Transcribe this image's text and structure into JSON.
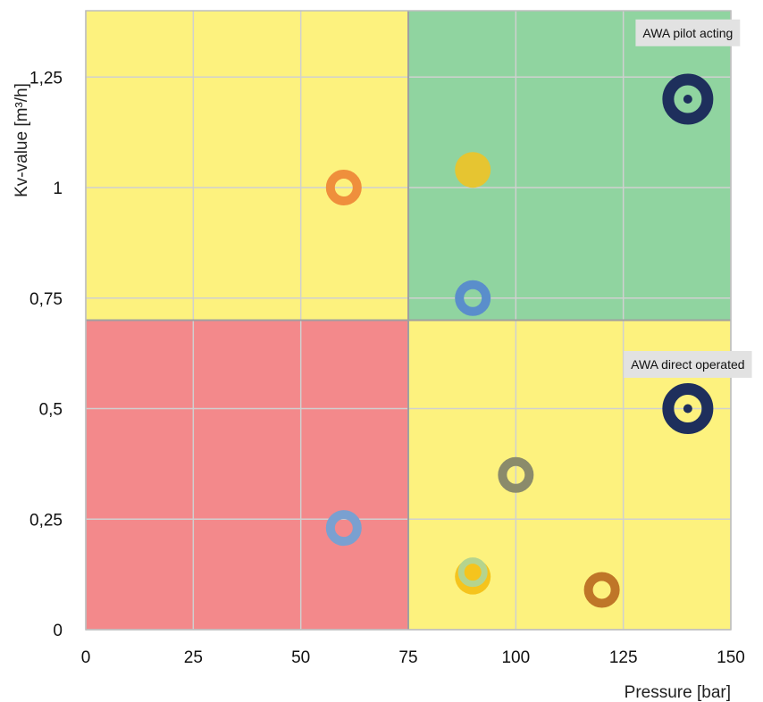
{
  "chart_data": {
    "type": "scatter",
    "title": "",
    "xlabel": "Pressure [bar]",
    "ylabel": "Kv-value [m³/h]",
    "xlim": [
      0,
      150
    ],
    "ylim": [
      0,
      1.4
    ],
    "x_ticks": [
      0,
      25,
      50,
      75,
      100,
      125,
      150
    ],
    "y_ticks": [
      0,
      0.25,
      0.5,
      0.75,
      1,
      1.25
    ],
    "x_tick_labels": [
      "0",
      "25",
      "50",
      "75",
      "100",
      "125",
      "150"
    ],
    "y_tick_labels": [
      "0",
      "0,25",
      "0,5",
      "0,75",
      "1",
      "1,25"
    ],
    "grid": true,
    "regions": [
      {
        "x": [
          0,
          75
        ],
        "y": [
          0.7,
          1.4
        ],
        "color": "#fdf27e"
      },
      {
        "x": [
          75,
          150
        ],
        "y": [
          0.7,
          1.4
        ],
        "color": "#90d4a0"
      },
      {
        "x": [
          0,
          75
        ],
        "y": [
          0,
          0.7
        ],
        "color": "#f3898b"
      },
      {
        "x": [
          75,
          150
        ],
        "y": [
          0,
          0.7
        ],
        "color": "#fdf27e"
      }
    ],
    "points": [
      {
        "x": 60,
        "y": 1.0,
        "color": "#ef8f3c",
        "style": "ring",
        "size": "medium"
      },
      {
        "x": 90,
        "y": 1.04,
        "color": "#e6c531",
        "style": "filled",
        "size": "medium"
      },
      {
        "x": 90,
        "y": 0.75,
        "color": "#5a8ecb",
        "style": "ring",
        "size": "medium"
      },
      {
        "x": 140,
        "y": 1.2,
        "color": "#1e2f5c",
        "style": "ring",
        "size": "large"
      },
      {
        "x": 140,
        "y": 0.5,
        "color": "#1e2f5c",
        "style": "ring",
        "size": "large"
      },
      {
        "x": 100,
        "y": 0.35,
        "color": "#8b8b6b",
        "style": "ring",
        "size": "medium"
      },
      {
        "x": 60,
        "y": 0.23,
        "color": "#7aa0d0",
        "style": "ring",
        "size": "medium"
      },
      {
        "x": 90,
        "y": 0.12,
        "color": "#f5c41d",
        "style": "filled",
        "size": "medium"
      },
      {
        "x": 90,
        "y": 0.13,
        "color": "#b5d48e",
        "style": "ring",
        "size": "small"
      },
      {
        "x": 120,
        "y": 0.09,
        "color": "#bf7628",
        "style": "ring",
        "size": "medium"
      }
    ],
    "annotations": [
      {
        "text": "AWA pilot acting",
        "x": 140,
        "y": 1.35
      },
      {
        "text": "AWA direct operated",
        "x": 140,
        "y": 0.6
      }
    ]
  }
}
